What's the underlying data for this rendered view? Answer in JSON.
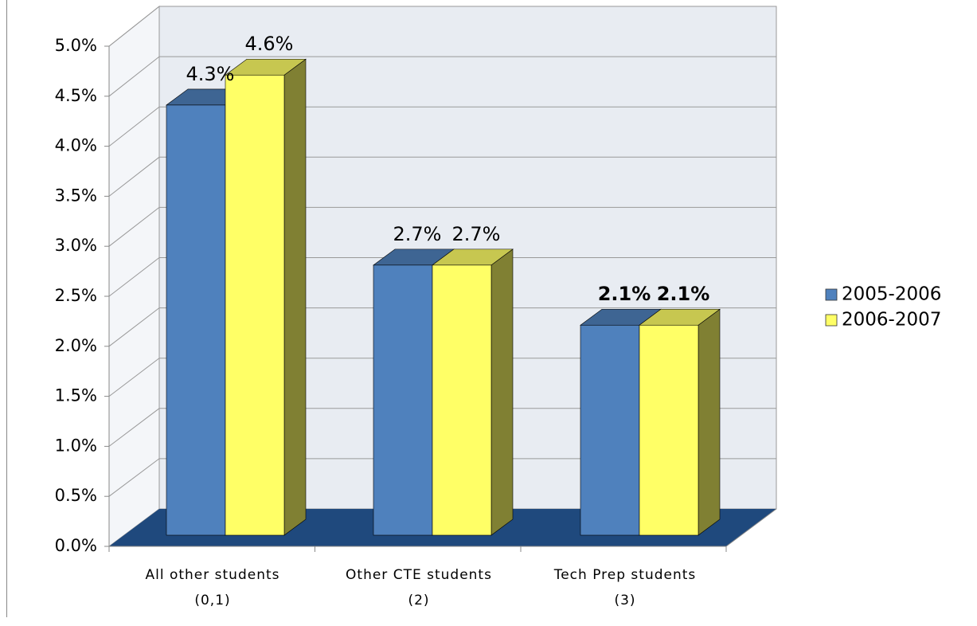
{
  "chart_data": {
    "type": "bar3d",
    "categories": [
      "All other students\n(0,1)",
      "Other CTE students\n(2)",
      "Tech Prep students\n(3)"
    ],
    "series": [
      {
        "name": "2005-2006",
        "color": "#4f81bd",
        "values": [
          4.3,
          2.7,
          2.1
        ],
        "value_labels": [
          "4.3%",
          "2.7%",
          "2.1%"
        ]
      },
      {
        "name": "2006-2007",
        "color": "#ffff66",
        "values": [
          4.6,
          2.7,
          2.1
        ],
        "value_labels": [
          "4.6%",
          "2.7%",
          "2.1%"
        ]
      }
    ],
    "ylim": [
      0,
      5
    ],
    "yticks": [
      {
        "value": 0,
        "label": "0.0%"
      },
      {
        "value": 0.5,
        "label": "0.5%"
      },
      {
        "value": 1,
        "label": "1.0%"
      },
      {
        "value": 1.5,
        "label": "1.5%"
      },
      {
        "value": 2,
        "label": "2.0%"
      },
      {
        "value": 2.5,
        "label": "2.5%"
      },
      {
        "value": 3,
        "label": "3.0%"
      },
      {
        "value": 3.5,
        "label": "3.5%"
      },
      {
        "value": 4,
        "label": "4.0%"
      },
      {
        "value": 4.5,
        "label": "4.5%"
      },
      {
        "value": 5,
        "label": "5.0%"
      }
    ],
    "grid": true,
    "legend": "right"
  }
}
